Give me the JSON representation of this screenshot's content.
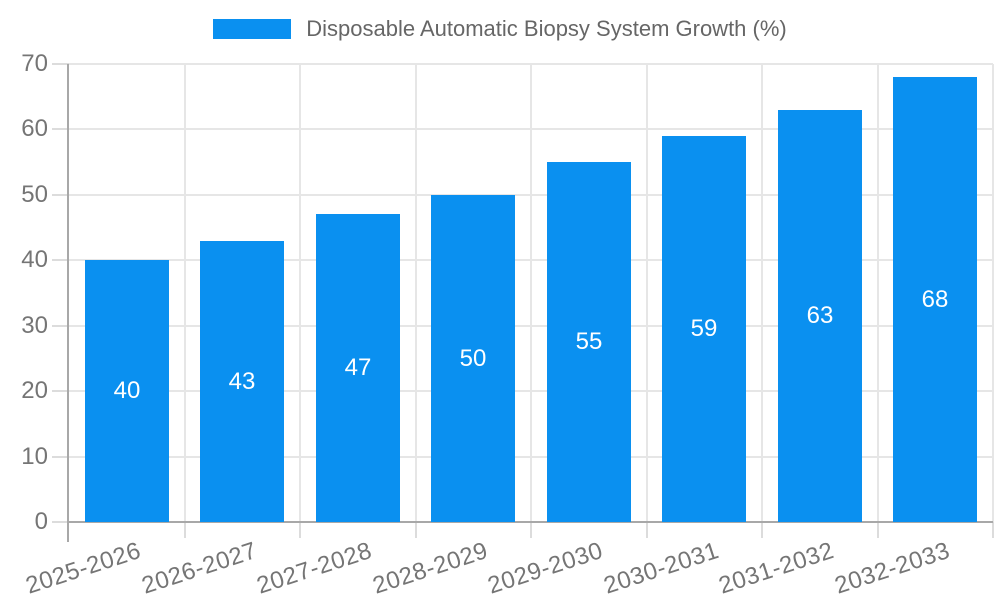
{
  "chart_data": {
    "type": "bar",
    "title": "",
    "legend": "Disposable Automatic Biopsy System Growth (%)",
    "legend_position": "top",
    "categories": [
      "2025-2026",
      "2026-2027",
      "2027-2028",
      "2028-2029",
      "2029-2030",
      "2030-2031",
      "2031-2032",
      "2032-2033"
    ],
    "values": [
      40,
      43,
      47,
      50,
      55,
      59,
      63,
      68
    ],
    "xlabel": "",
    "ylabel": "",
    "ylim": [
      0,
      70
    ],
    "yticks": [
      0,
      10,
      20,
      30,
      40,
      50,
      60,
      70
    ],
    "grid": true,
    "x_label_rotation_deg": -18,
    "bar_color": "#0a90f0",
    "value_label_color": "#ffffff",
    "axis_text_color": "#757575",
    "legend_text_color": "#666666",
    "grid_color": "#e6e6e6",
    "tick_color": "#dcdcdc",
    "axis_line_color": "#a8a8a8",
    "background_color": "#ffffff"
  }
}
